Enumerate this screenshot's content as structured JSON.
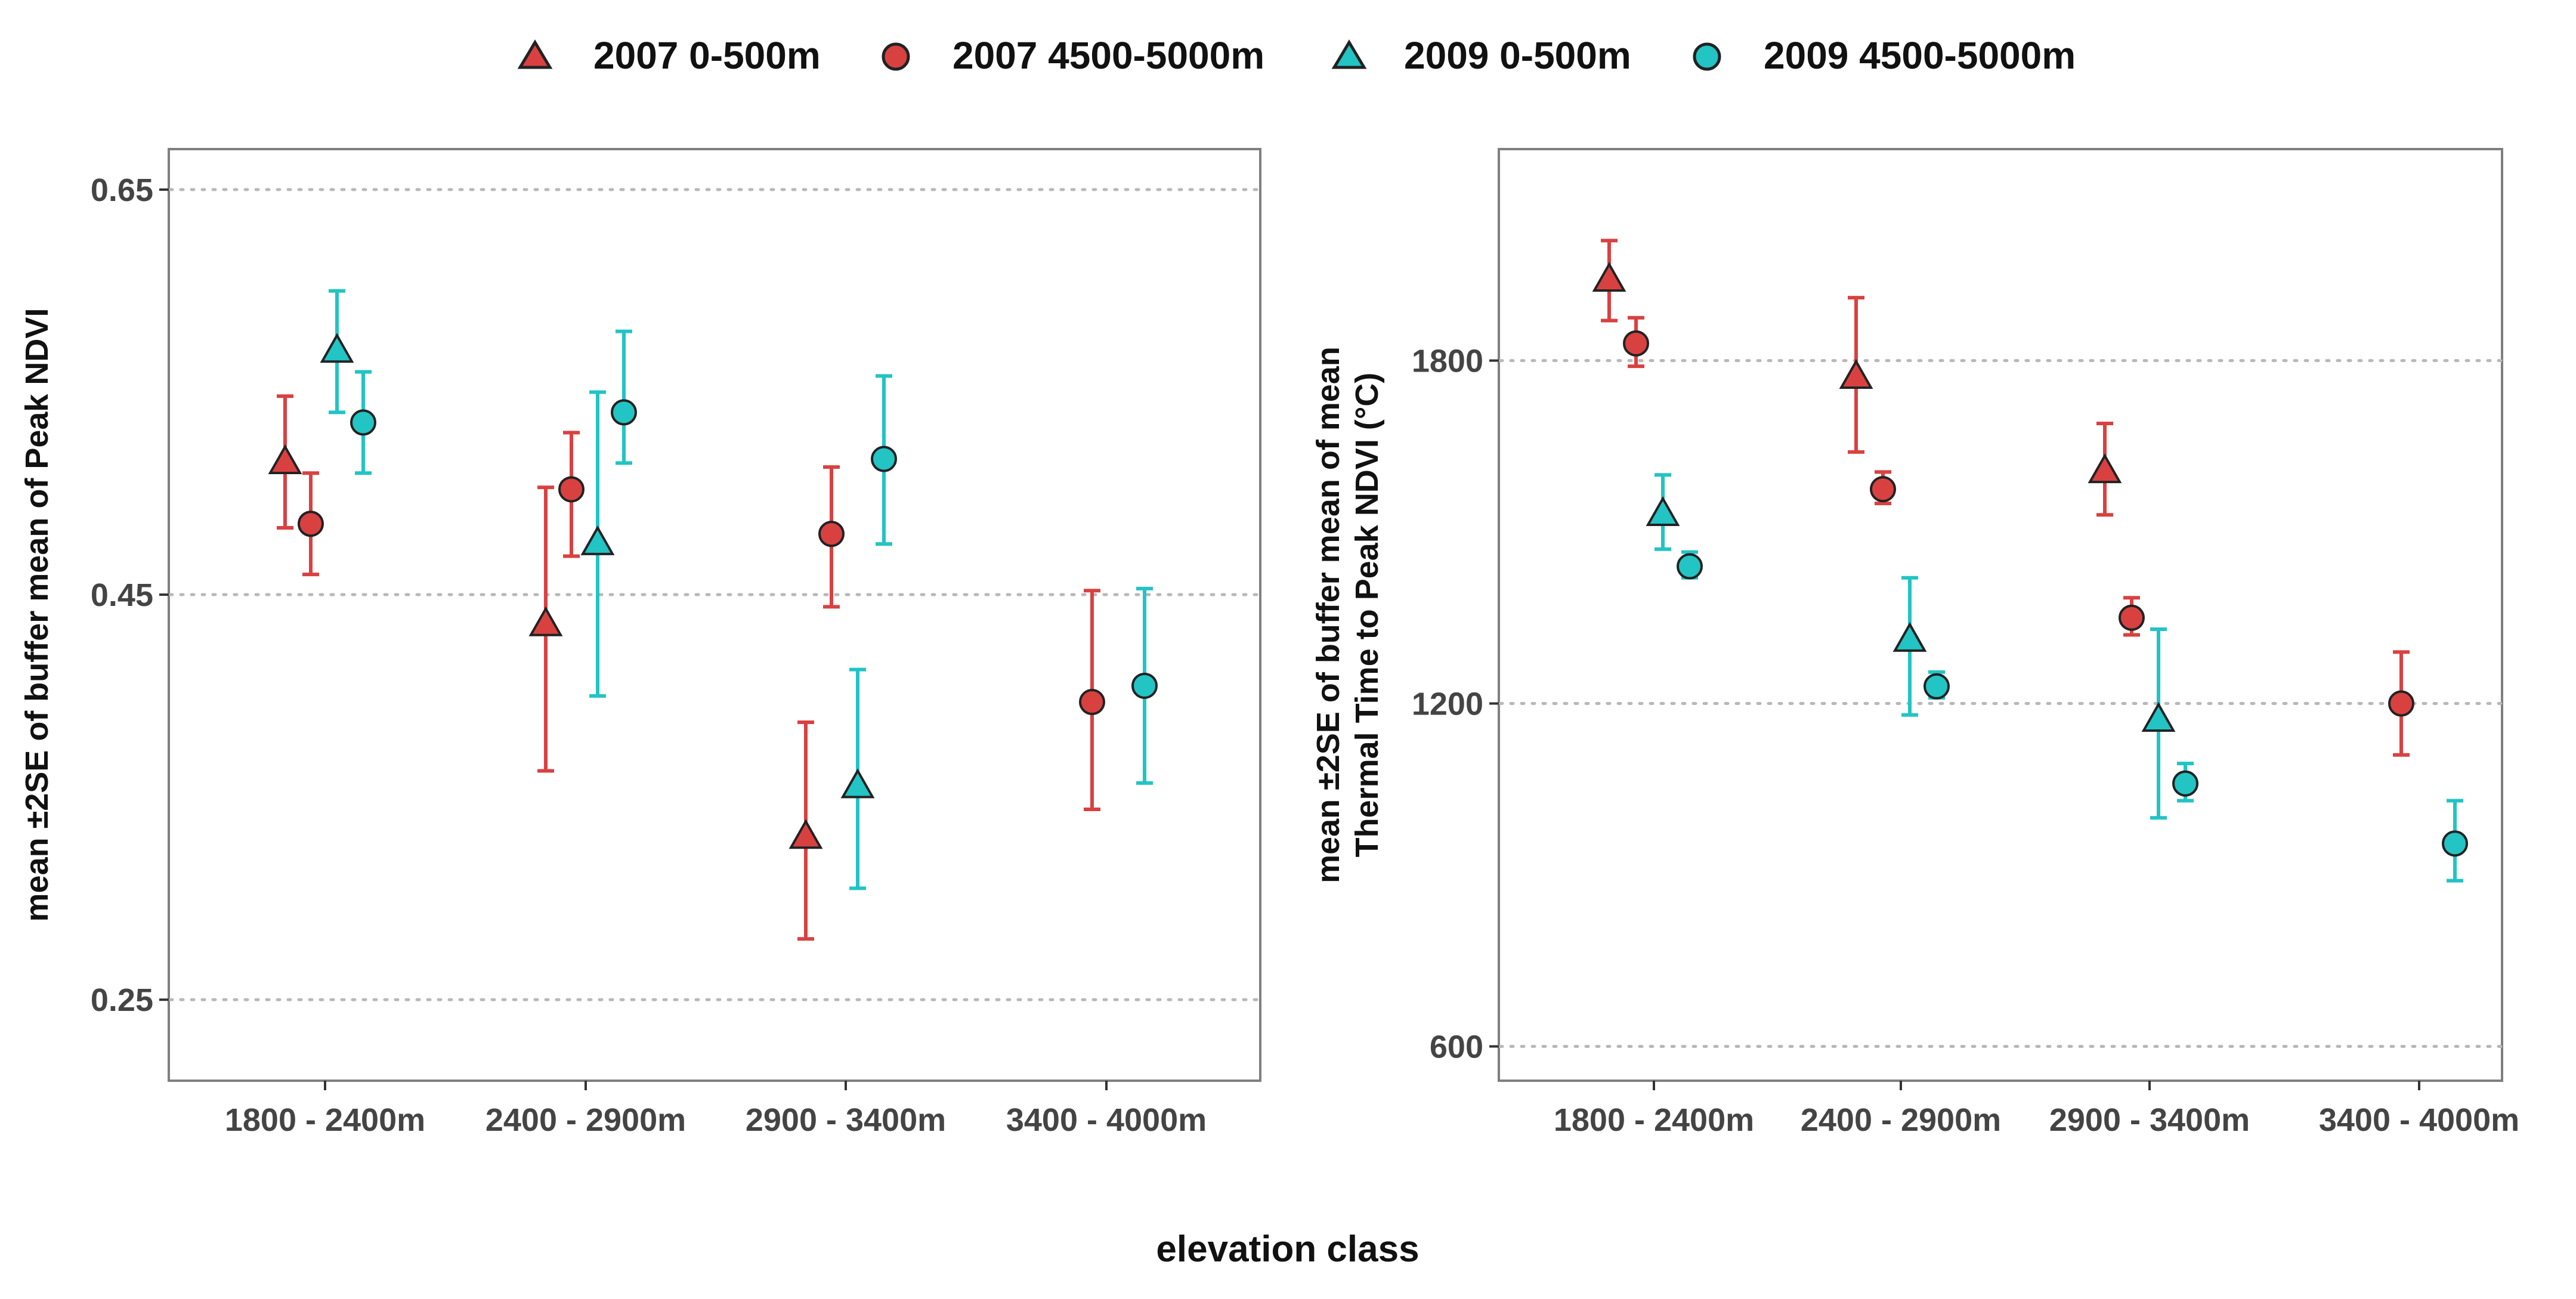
{
  "legend": {
    "items": [
      {
        "label": "2007 0-500m",
        "color": "#d94141",
        "shape": "triangle"
      },
      {
        "label": "2007 4500-5000m",
        "color": "#d94141",
        "shape": "circle"
      },
      {
        "label": "2009 0-500m",
        "color": "#22c4c4",
        "shape": "triangle"
      },
      {
        "label": "2009 4500-5000m",
        "color": "#22c4c4",
        "shape": "circle"
      }
    ]
  },
  "xlabel": "elevation class",
  "colors": {
    "red": "#d94141",
    "cyan": "#22c4c4",
    "grid": "#b8b8b8",
    "frame": "#7f7f7f"
  },
  "chart_data": [
    {
      "type": "scatter",
      "title": "",
      "xlabel": "elevation class",
      "ylabel": "mean ±2SE of buffer mean of Peak NDVI",
      "categories": [
        "1800 - 2400m",
        "2400 - 2900m",
        "2900 - 3400m",
        "3400 - 4000m"
      ],
      "ylim": [
        0.21,
        0.67
      ],
      "yticks": [
        0.25,
        0.45,
        0.65
      ],
      "ytick_labels": [
        "0.25",
        "0.45",
        "0.65"
      ],
      "grid": "horizontal dotted",
      "legend_position": "top",
      "series": [
        {
          "name": "2007 0-500m",
          "color": "#d94141",
          "shape": "triangle",
          "points": [
            {
              "category": "1800 - 2400m",
              "mean": 0.515,
              "lo": 0.483,
              "hi": 0.548
            },
            {
              "category": "2400 - 2900m",
              "mean": 0.435,
              "lo": 0.363,
              "hi": 0.503
            },
            {
              "category": "2900 - 3400m",
              "mean": 0.33,
              "lo": 0.28,
              "hi": 0.387
            },
            {
              "category": "3400 - 4000m",
              "mean": null
            }
          ]
        },
        {
          "name": "2007 4500-5000m",
          "color": "#d94141",
          "shape": "circle",
          "points": [
            {
              "category": "1800 - 2400m",
              "mean": 0.485,
              "lo": 0.46,
              "hi": 0.51
            },
            {
              "category": "2400 - 2900m",
              "mean": 0.502,
              "lo": 0.469,
              "hi": 0.53
            },
            {
              "category": "2900 - 3400m",
              "mean": 0.48,
              "lo": 0.444,
              "hi": 0.513
            },
            {
              "category": "3400 - 4000m",
              "mean": 0.397,
              "lo": 0.344,
              "hi": 0.452
            }
          ]
        },
        {
          "name": "2009 0-500m",
          "color": "#22c4c4",
          "shape": "triangle",
          "points": [
            {
              "category": "1800 - 2400m",
              "mean": 0.57,
              "lo": 0.54,
              "hi": 0.6
            },
            {
              "category": "2400 - 2900m",
              "mean": 0.475,
              "lo": 0.4,
              "hi": 0.55
            },
            {
              "category": "2900 - 3400m",
              "mean": 0.355,
              "lo": 0.305,
              "hi": 0.413
            },
            {
              "category": "3400 - 4000m",
              "mean": null
            }
          ]
        },
        {
          "name": "2009 4500-5000m",
          "color": "#22c4c4",
          "shape": "circle",
          "points": [
            {
              "category": "1800 - 2400m",
              "mean": 0.535,
              "lo": 0.51,
              "hi": 0.56
            },
            {
              "category": "2400 - 2900m",
              "mean": 0.54,
              "lo": 0.515,
              "hi": 0.58
            },
            {
              "category": "2900 - 3400m",
              "mean": 0.517,
              "lo": 0.475,
              "hi": 0.558
            },
            {
              "category": "3400 - 4000m",
              "mean": 0.405,
              "lo": 0.357,
              "hi": 0.453
            }
          ]
        }
      ]
    },
    {
      "type": "scatter",
      "title": "",
      "xlabel": "elevation class",
      "ylabel": "mean ±2SE of buffer mean of mean Thermal Time to Peak NDVI (°C)",
      "ylabel_lines": [
        "mean ±2SE of buffer mean of mean",
        "Thermal Time to Peak NDVI (°C)"
      ],
      "categories": [
        "1800 - 2400m",
        "2400 - 2900m",
        "2900 - 3400m",
        "3400 - 4000m"
      ],
      "ylim": [
        540,
        2170
      ],
      "yticks": [
        600,
        1200,
        1800
      ],
      "ytick_labels": [
        "600",
        "1200",
        "1800"
      ],
      "grid": "horizontal dotted",
      "legend_position": "top",
      "series": [
        {
          "name": "2007 0-500m",
          "color": "#d94141",
          "shape": "triangle",
          "points": [
            {
              "category": "1800 - 2400m",
              "mean": 1940,
              "lo": 1870,
              "hi": 2010
            },
            {
              "category": "2400 - 2900m",
              "mean": 1770,
              "lo": 1640,
              "hi": 1910
            },
            {
              "category": "2900 - 3400m",
              "mean": 1605,
              "lo": 1530,
              "hi": 1690
            },
            {
              "category": "3400 - 4000m",
              "mean": null
            }
          ]
        },
        {
          "name": "2007 4500-5000m",
          "color": "#d94141",
          "shape": "circle",
          "points": [
            {
              "category": "1800 - 2400m",
              "mean": 1830,
              "lo": 1790,
              "hi": 1875
            },
            {
              "category": "2400 - 2900m",
              "mean": 1575,
              "lo": 1550,
              "hi": 1605
            },
            {
              "category": "2900 - 3400m",
              "mean": 1350,
              "lo": 1320,
              "hi": 1385
            },
            {
              "category": "3400 - 4000m",
              "mean": 1200,
              "lo": 1110,
              "hi": 1290
            }
          ]
        },
        {
          "name": "2009 0-500m",
          "color": "#22c4c4",
          "shape": "triangle",
          "points": [
            {
              "category": "1800 - 2400m",
              "mean": 1530,
              "lo": 1470,
              "hi": 1600
            },
            {
              "category": "2400 - 2900m",
              "mean": 1310,
              "lo": 1180,
              "hi": 1420
            },
            {
              "category": "2900 - 3400m",
              "mean": 1170,
              "lo": 1000,
              "hi": 1330
            },
            {
              "category": "3400 - 4000m",
              "mean": null
            }
          ]
        },
        {
          "name": "2009 4500-5000m",
          "color": "#22c4c4",
          "shape": "circle",
          "points": [
            {
              "category": "1800 - 2400m",
              "mean": 1440,
              "lo": 1420,
              "hi": 1465
            },
            {
              "category": "2400 - 2900m",
              "mean": 1230,
              "lo": 1210,
              "hi": 1255
            },
            {
              "category": "2900 - 3400m",
              "mean": 1060,
              "lo": 1030,
              "hi": 1095
            },
            {
              "category": "3400 - 4000m",
              "mean": 955,
              "lo": 890,
              "hi": 1030
            }
          ]
        }
      ]
    }
  ]
}
